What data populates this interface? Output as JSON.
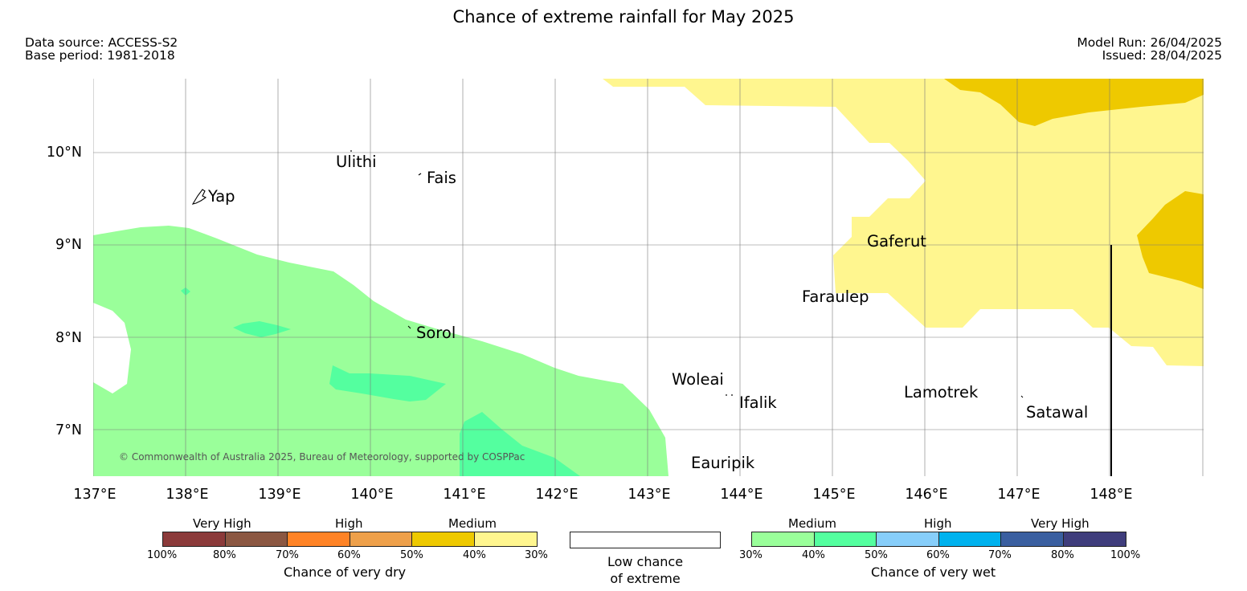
{
  "header": {
    "title": "Chance of extreme rainfall for May 2025",
    "data_source": "Data source: ACCESS-S2",
    "base_period": "Base period: 1981-2018",
    "model_run": "Model Run: 26/04/2025",
    "issued": "Issued: 28/04/2025"
  },
  "map": {
    "lat_labels": [
      "10°N",
      "9°N",
      "8°N",
      "7°N"
    ],
    "lon_labels": [
      "137°E",
      "138°E",
      "139°E",
      "140°E",
      "141°E",
      "142°E",
      "143°E",
      "144°E",
      "145°E",
      "146°E",
      "147°E",
      "148°E"
    ],
    "places": [
      {
        "name": "Ulithi"
      },
      {
        "name": "Fais"
      },
      {
        "name": "Yap"
      },
      {
        "name": "Gaferut"
      },
      {
        "name": "Faraulep"
      },
      {
        "name": "Sorol"
      },
      {
        "name": "Woleai"
      },
      {
        "name": "Ifalik"
      },
      {
        "name": "Lamotrek"
      },
      {
        "name": "Satawal"
      },
      {
        "name": "Eauripik"
      }
    ],
    "copyright": "© Commonwealth of Australia 2025, Bureau of Meteorology, supported by COSPPac",
    "colors": {
      "dry_30_40": "#fff68f",
      "dry_40_50": "#eec900",
      "wet_30_40": "#9aff9a",
      "wet_40_50": "#54ff9f"
    }
  },
  "legend": {
    "dry": {
      "categories": [
        "Very High",
        "High",
        "Medium"
      ],
      "ticks": [
        "100%",
        "80%",
        "70%",
        "60%",
        "50%",
        "40%",
        "30%"
      ],
      "colors": [
        "#8b3a3a",
        "#8b5742",
        "#ff8326",
        "#eea04a",
        "#eec900",
        "#fff68f"
      ],
      "title": "Chance of very dry"
    },
    "low": {
      "line1": "Low chance",
      "line2": "of extreme",
      "color": "#ffffff"
    },
    "wet": {
      "categories": [
        "Medium",
        "High",
        "Very High"
      ],
      "ticks": [
        "30%",
        "40%",
        "50%",
        "60%",
        "70%",
        "80%",
        "100%"
      ],
      "colors": [
        "#9aff9a",
        "#54ff9f",
        "#87cefa",
        "#00b2ee",
        "#3a5fa0",
        "#3f3d7c"
      ],
      "title": "Chance of very wet"
    }
  }
}
